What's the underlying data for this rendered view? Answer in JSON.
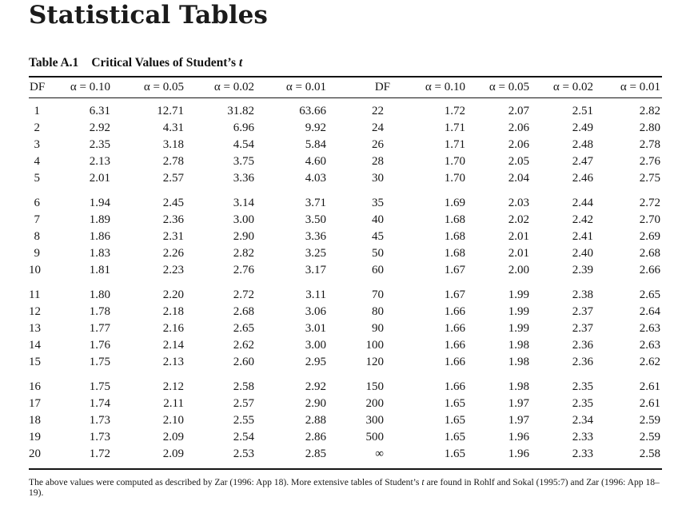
{
  "page_title": "Statistical Tables",
  "table": {
    "caption": {
      "label": "Table A.1",
      "title": "Critical Values of Student’s ",
      "title_italic": "t"
    },
    "columns": [
      "DF",
      "α = 0.10",
      "α = 0.05",
      "α = 0.02",
      "α = 0.01"
    ],
    "left_groups": [
      [
        [
          "1",
          "6.31",
          "12.71",
          "31.82",
          "63.66"
        ],
        [
          "2",
          "2.92",
          "4.31",
          "6.96",
          "9.92"
        ],
        [
          "3",
          "2.35",
          "3.18",
          "4.54",
          "5.84"
        ],
        [
          "4",
          "2.13",
          "2.78",
          "3.75",
          "4.60"
        ],
        [
          "5",
          "2.01",
          "2.57",
          "3.36",
          "4.03"
        ]
      ],
      [
        [
          "6",
          "1.94",
          "2.45",
          "3.14",
          "3.71"
        ],
        [
          "7",
          "1.89",
          "2.36",
          "3.00",
          "3.50"
        ],
        [
          "8",
          "1.86",
          "2.31",
          "2.90",
          "3.36"
        ],
        [
          "9",
          "1.83",
          "2.26",
          "2.82",
          "3.25"
        ],
        [
          "10",
          "1.81",
          "2.23",
          "2.76",
          "3.17"
        ]
      ],
      [
        [
          "11",
          "1.80",
          "2.20",
          "2.72",
          "3.11"
        ],
        [
          "12",
          "1.78",
          "2.18",
          "2.68",
          "3.06"
        ],
        [
          "13",
          "1.77",
          "2.16",
          "2.65",
          "3.01"
        ],
        [
          "14",
          "1.76",
          "2.14",
          "2.62",
          "3.00"
        ],
        [
          "15",
          "1.75",
          "2.13",
          "2.60",
          "2.95"
        ]
      ],
      [
        [
          "16",
          "1.75",
          "2.12",
          "2.58",
          "2.92"
        ],
        [
          "17",
          "1.74",
          "2.11",
          "2.57",
          "2.90"
        ],
        [
          "18",
          "1.73",
          "2.10",
          "2.55",
          "2.88"
        ],
        [
          "19",
          "1.73",
          "2.09",
          "2.54",
          "2.86"
        ],
        [
          "20",
          "1.72",
          "2.09",
          "2.53",
          "2.85"
        ]
      ]
    ],
    "right_groups": [
      [
        [
          "22",
          "1.72",
          "2.07",
          "2.51",
          "2.82"
        ],
        [
          "24",
          "1.71",
          "2.06",
          "2.49",
          "2.80"
        ],
        [
          "26",
          "1.71",
          "2.06",
          "2.48",
          "2.78"
        ],
        [
          "28",
          "1.70",
          "2.05",
          "2.47",
          "2.76"
        ],
        [
          "30",
          "1.70",
          "2.04",
          "2.46",
          "2.75"
        ]
      ],
      [
        [
          "35",
          "1.69",
          "2.03",
          "2.44",
          "2.72"
        ],
        [
          "40",
          "1.68",
          "2.02",
          "2.42",
          "2.70"
        ],
        [
          "45",
          "1.68",
          "2.01",
          "2.41",
          "2.69"
        ],
        [
          "50",
          "1.68",
          "2.01",
          "2.40",
          "2.68"
        ],
        [
          "60",
          "1.67",
          "2.00",
          "2.39",
          "2.66"
        ]
      ],
      [
        [
          "70",
          "1.67",
          "1.99",
          "2.38",
          "2.65"
        ],
        [
          "80",
          "1.66",
          "1.99",
          "2.37",
          "2.64"
        ],
        [
          "90",
          "1.66",
          "1.99",
          "2.37",
          "2.63"
        ],
        [
          "100",
          "1.66",
          "1.98",
          "2.36",
          "2.63"
        ],
        [
          "120",
          "1.66",
          "1.98",
          "2.36",
          "2.62"
        ]
      ],
      [
        [
          "150",
          "1.66",
          "1.98",
          "2.35",
          "2.61"
        ],
        [
          "200",
          "1.65",
          "1.97",
          "2.35",
          "2.61"
        ],
        [
          "300",
          "1.65",
          "1.97",
          "2.34",
          "2.59"
        ],
        [
          "500",
          "1.65",
          "1.96",
          "2.33",
          "2.59"
        ],
        [
          "∞",
          "1.65",
          "1.96",
          "2.33",
          "2.58"
        ]
      ]
    ]
  },
  "footnote": {
    "part1": "The above values were computed as described by Zar (1996: App 18). More extensive tables of Student’s ",
    "italic": "t",
    "part2": " are found in Rohlf and Sokal (1995:7) and Zar (1996: App 18–19)."
  }
}
